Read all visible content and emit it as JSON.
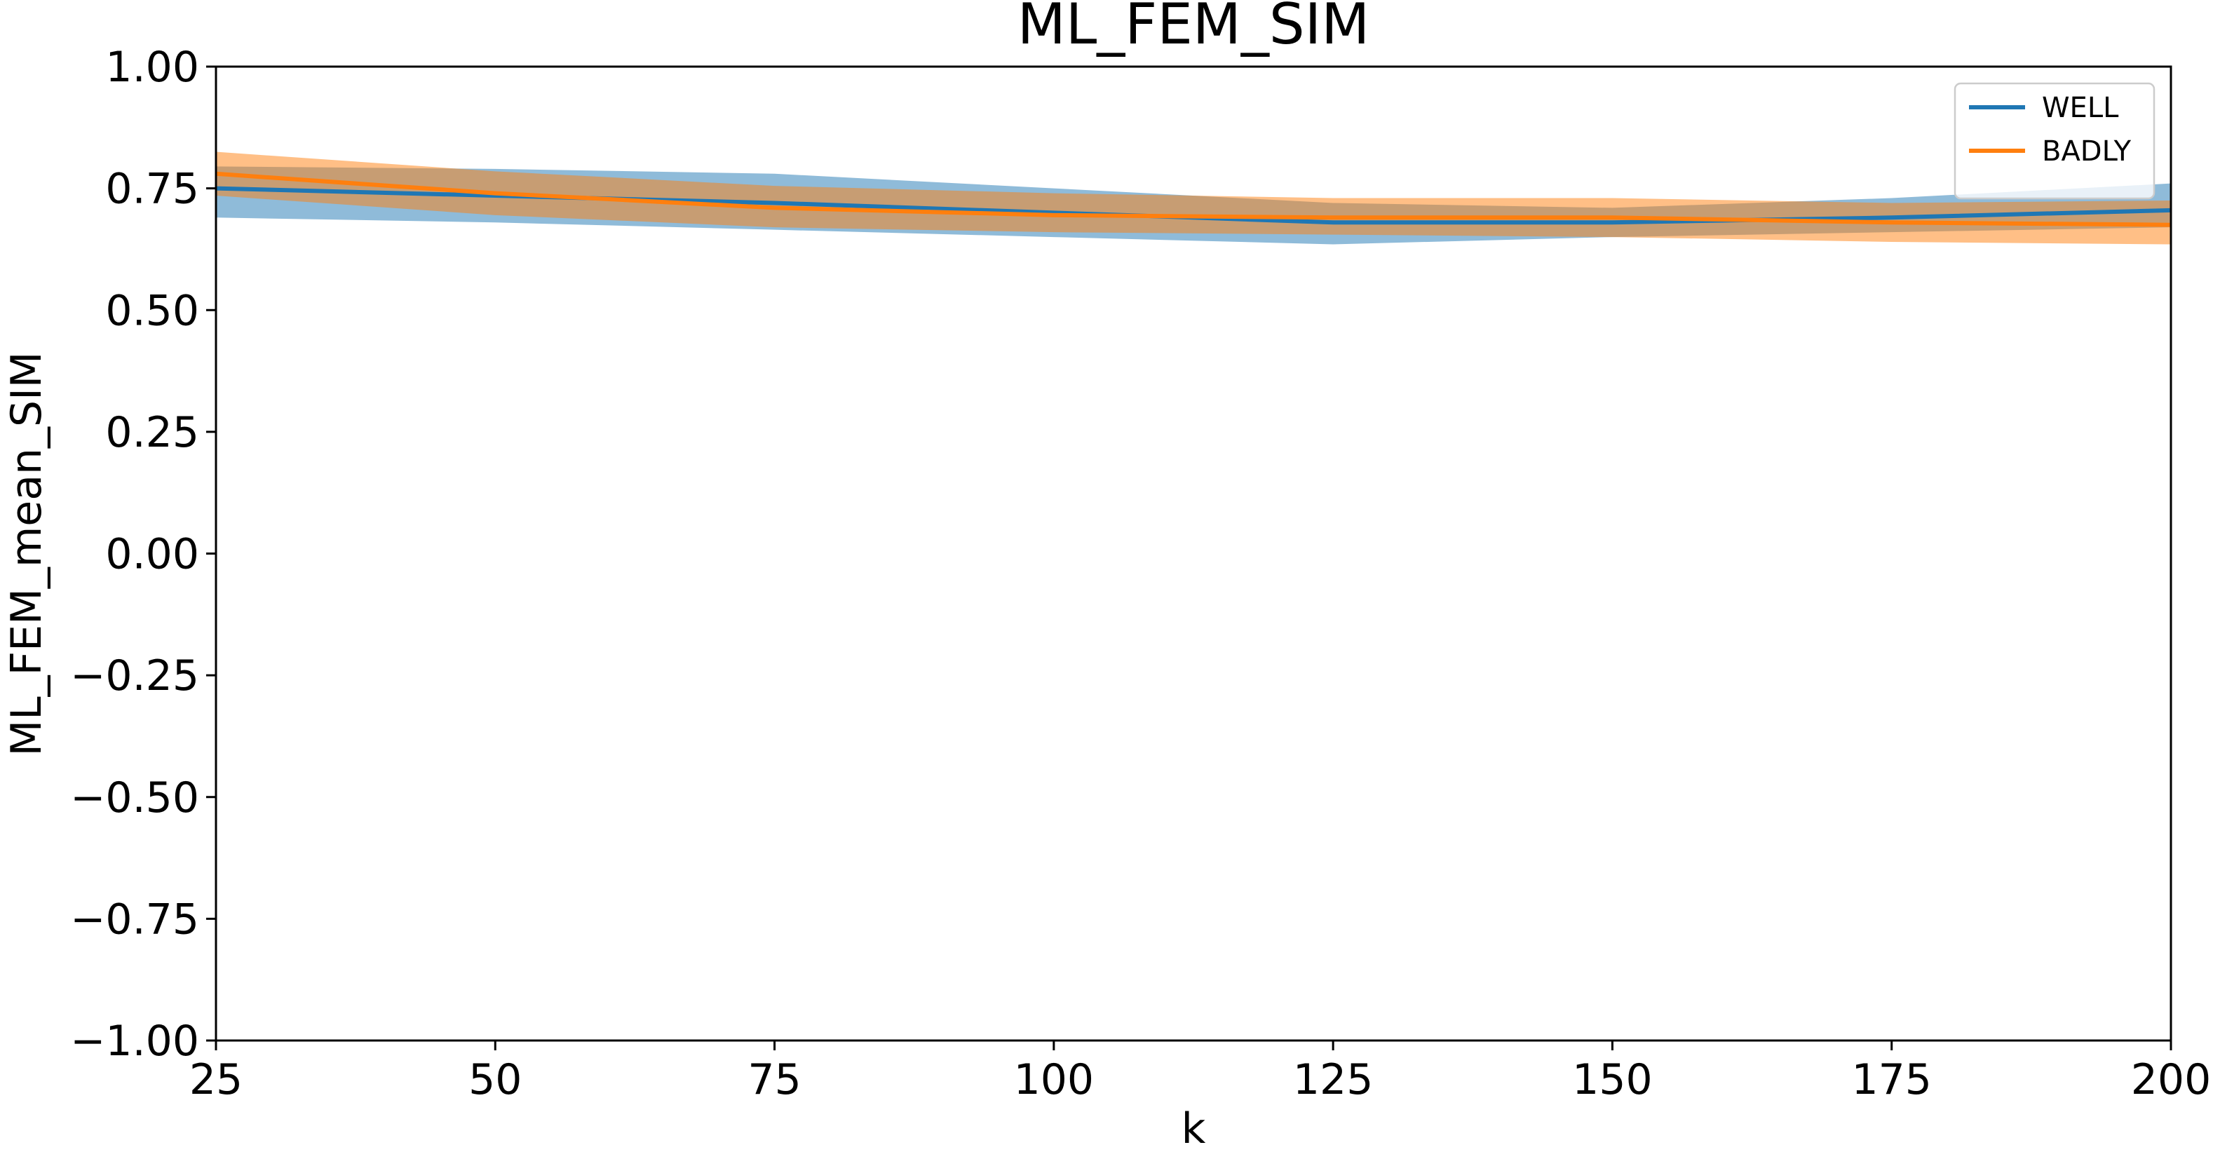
{
  "chart_data": {
    "type": "line",
    "title": "ML_FEM_SIM",
    "x_label": "k",
    "y_label": "ML_FEM_mean_SIM",
    "x": [
      25,
      50,
      75,
      100,
      125,
      150,
      175,
      200
    ],
    "xlim": [
      25,
      200
    ],
    "xticks": [
      25,
      50,
      75,
      100,
      125,
      150,
      175,
      200
    ],
    "ylim": [
      -1,
      1
    ],
    "yticks": [
      {
        "value": -1,
        "label": "−1.00"
      },
      {
        "value": -0.75,
        "label": "−0.75"
      },
      {
        "value": -0.5,
        "label": "−0.50"
      },
      {
        "value": -0.25,
        "label": "−0.25"
      },
      {
        "value": 0,
        "label": "0.00"
      },
      {
        "value": 0.25,
        "label": "0.25"
      },
      {
        "value": 0.5,
        "label": "0.50"
      },
      {
        "value": 0.75,
        "label": "0.75"
      },
      {
        "value": 1,
        "label": "1.00"
      }
    ],
    "legend": "upper right",
    "series": [
      {
        "name": "WELL",
        "color": "#1f77b4",
        "values": [
          0.75,
          0.735,
          0.72,
          0.7,
          0.68,
          0.68,
          0.69,
          0.705
        ],
        "upper": [
          0.795,
          0.79,
          0.78,
          0.75,
          0.72,
          0.71,
          0.73,
          0.76
        ],
        "lower": [
          0.69,
          0.68,
          0.665,
          0.65,
          0.635,
          0.65,
          0.66,
          0.67
        ]
      },
      {
        "name": "BADLY",
        "color": "#ff7f0e",
        "values": [
          0.78,
          0.74,
          0.71,
          0.695,
          0.69,
          0.69,
          0.68,
          0.675
        ],
        "upper": [
          0.825,
          0.785,
          0.755,
          0.74,
          0.73,
          0.73,
          0.72,
          0.725
        ],
        "lower": [
          0.735,
          0.695,
          0.67,
          0.66,
          0.655,
          0.65,
          0.64,
          0.635
        ]
      }
    ]
  }
}
